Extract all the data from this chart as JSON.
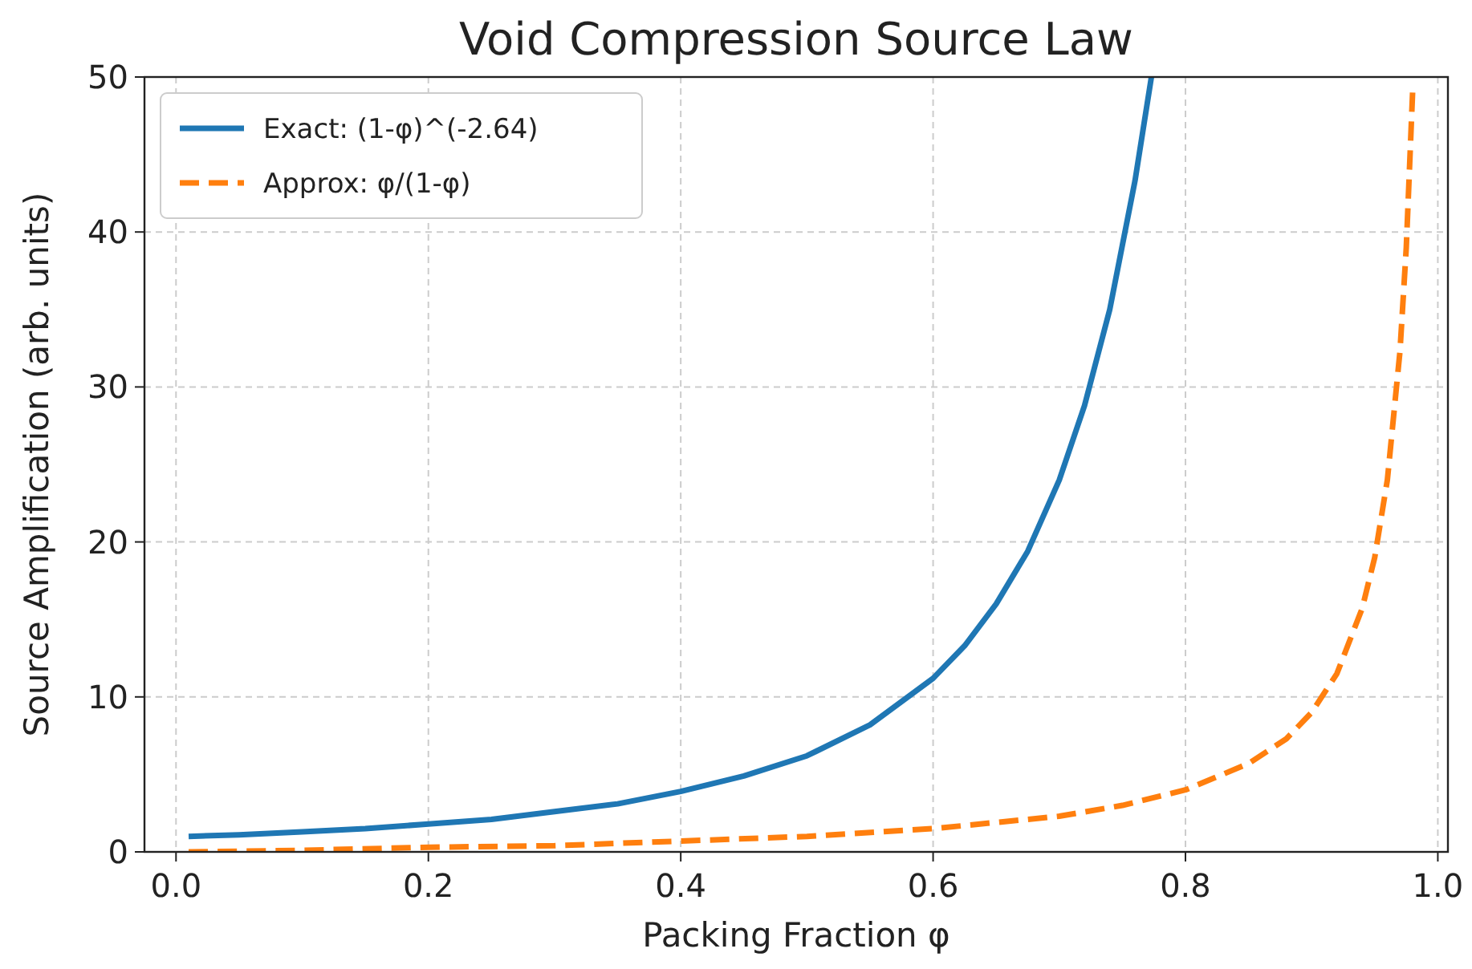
{
  "chart_data": {
    "type": "line",
    "title": "Void Compression Source Law",
    "xlabel": "Packing Fraction φ",
    "ylabel": "Source Amplification (arb. units)",
    "xlim": [
      -0.025,
      1.008
    ],
    "ylim": [
      0,
      50
    ],
    "xticks": [
      {
        "value": 0,
        "label": "0.0"
      },
      {
        "value": 0.2,
        "label": "0.2"
      },
      {
        "value": 0.4,
        "label": "0.4"
      },
      {
        "value": 0.6,
        "label": "0.6"
      },
      {
        "value": 0.8,
        "label": "0.8"
      },
      {
        "value": 1,
        "label": "1.0"
      }
    ],
    "yticks": [
      0,
      10,
      20,
      30,
      40,
      50
    ],
    "grid": true,
    "legend": "top left",
    "series": [
      {
        "name": "Exact: (1-φ)^(-2.64)",
        "color": "#1f77b4",
        "line_style": "solid",
        "x": [
          0.01,
          0.05,
          0.1,
          0.15,
          0.2,
          0.25,
          0.3,
          0.35,
          0.4,
          0.45,
          0.5,
          0.55,
          0.6,
          0.625,
          0.65,
          0.675,
          0.7,
          0.72,
          0.74,
          0.76,
          0.773
        ],
        "values": [
          1,
          1.1,
          1.3,
          1.5,
          1.8,
          2.1,
          2.6,
          3.1,
          3.9,
          4.9,
          6.2,
          8.2,
          11.2,
          13.3,
          16,
          19.4,
          24,
          28.8,
          35,
          43.3,
          50
        ]
      },
      {
        "name": "Approx: φ/(1-φ)",
        "color": "#ff7f0e",
        "line_style": "dashed",
        "x": [
          0.01,
          0.1,
          0.2,
          0.3,
          0.4,
          0.5,
          0.6,
          0.7,
          0.75,
          0.8,
          0.85,
          0.88,
          0.9,
          0.92,
          0.94,
          0.95,
          0.96,
          0.97,
          0.975,
          0.98
        ],
        "values": [
          0,
          0.1,
          0.3,
          0.4,
          0.7,
          1,
          1.5,
          2.3,
          3,
          4,
          5.7,
          7.3,
          9,
          11.5,
          15.7,
          19,
          24,
          32.3,
          39,
          49
        ]
      }
    ]
  }
}
